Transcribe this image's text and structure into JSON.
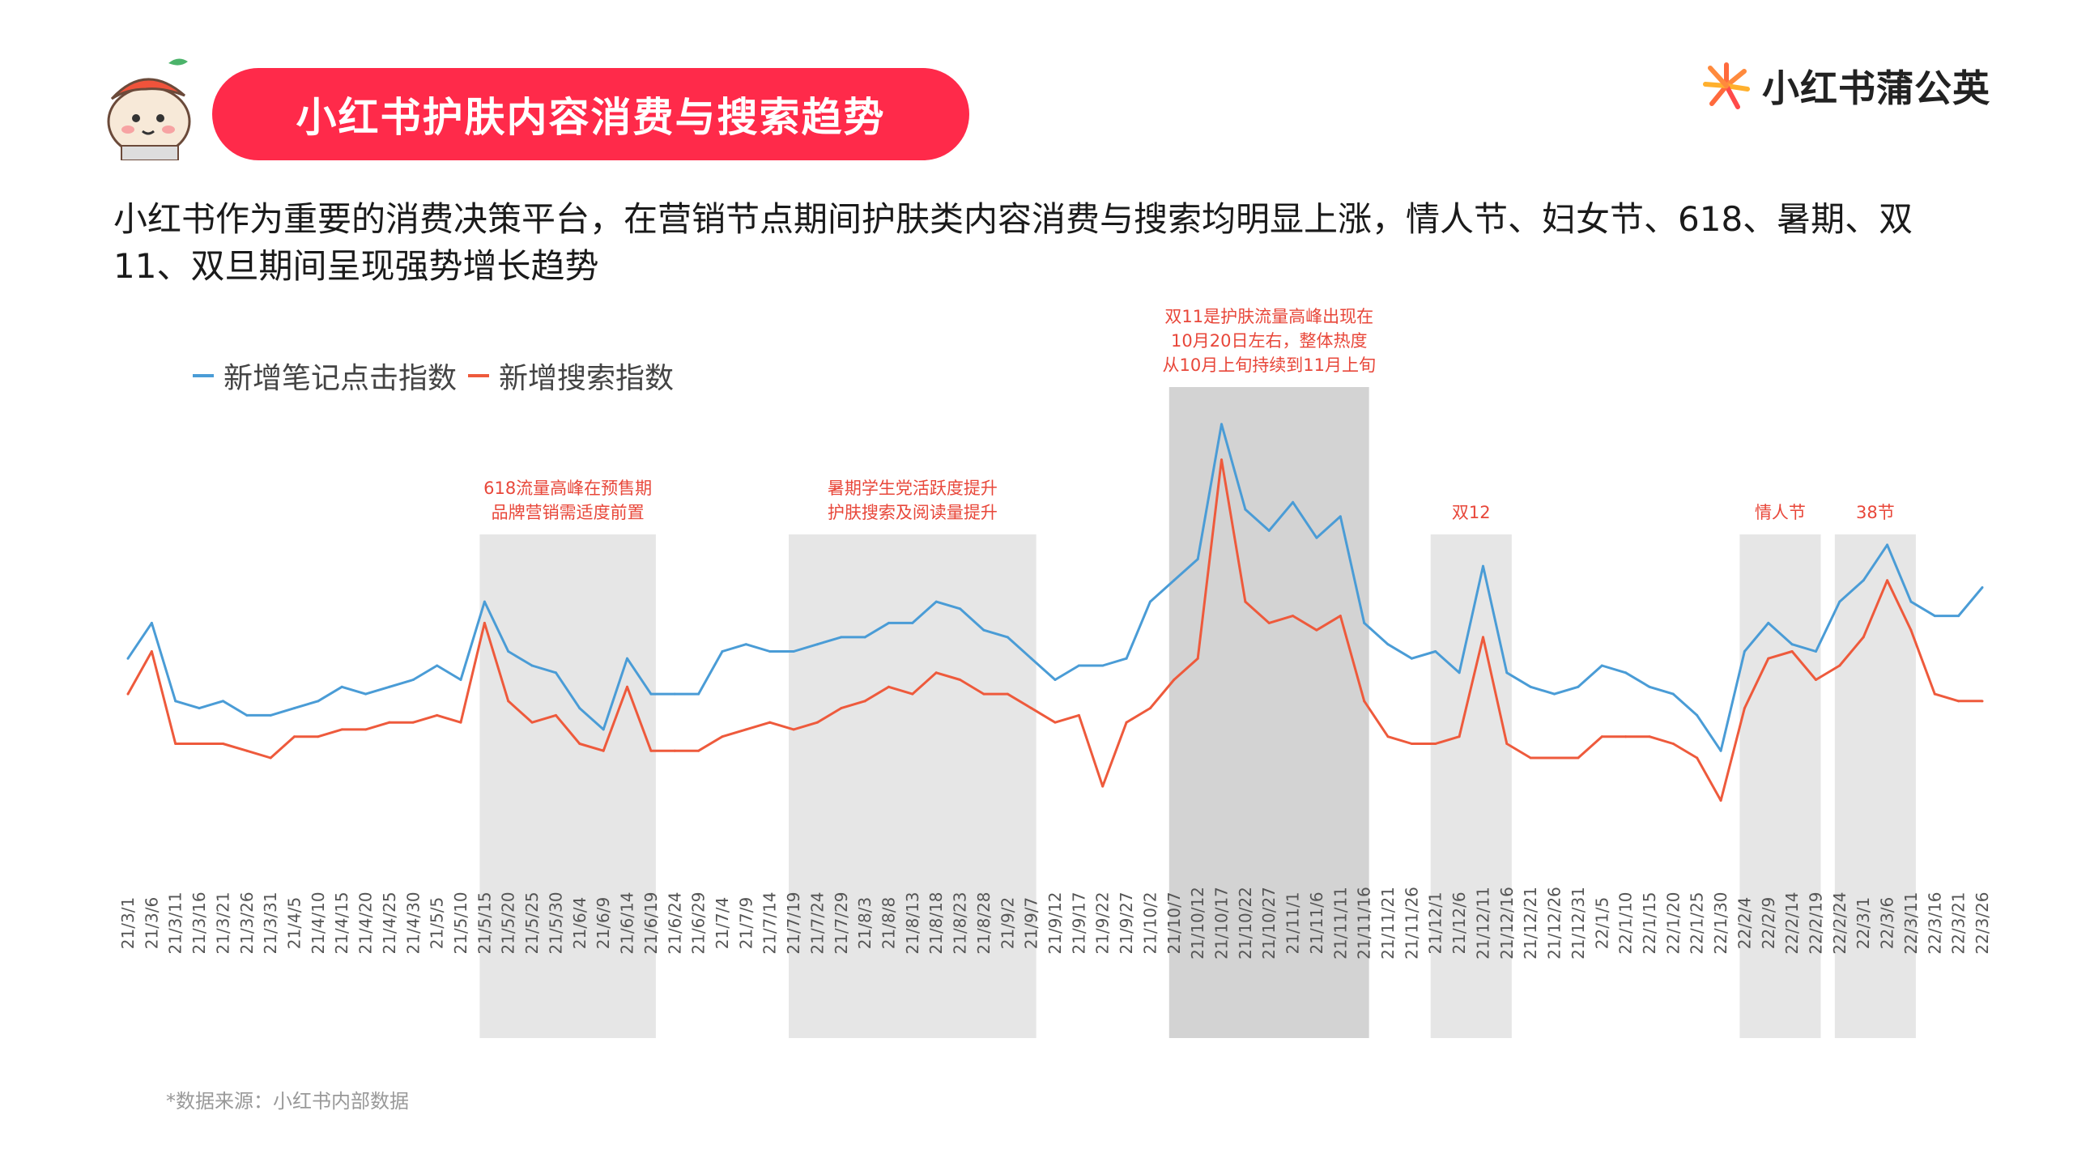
{
  "header": {
    "title": "小红书护肤内容消费与搜索趋势",
    "brand": "小红书蒲公英"
  },
  "subtitle": "小红书作为重要的消费决策平台，在营销节点期间护肤类内容消费与搜索均明显上涨，情人节、妇女节、618、暑期、双11、双旦期间呈现强势增长趋势",
  "legend": {
    "sep": "一",
    "series1_label": "新增笔记点击指数",
    "series2_label": "新增搜索指数"
  },
  "source": "*数据来源：小红书内部数据",
  "colors": {
    "accent": "#ff2a4a",
    "series1": "#4a9cd6",
    "series2": "#ee5a3c",
    "band_light": "#e6e6e6",
    "band_dark": "#d3d3d3",
    "annotation": "#e8473a"
  },
  "chart_data": {
    "type": "line",
    "x": [
      "21/3/1",
      "21/3/6",
      "21/3/11",
      "21/3/16",
      "21/3/21",
      "21/3/26",
      "21/3/31",
      "21/4/5",
      "21/4/10",
      "21/4/15",
      "21/4/20",
      "21/4/25",
      "21/4/30",
      "21/5/5",
      "21/5/10",
      "21/5/15",
      "21/5/20",
      "21/5/25",
      "21/5/30",
      "21/6/4",
      "21/6/9",
      "21/6/14",
      "21/6/19",
      "21/6/24",
      "21/6/29",
      "21/7/4",
      "21/7/9",
      "21/7/14",
      "21/7/19",
      "21/7/24",
      "21/7/29",
      "21/8/3",
      "21/8/8",
      "21/8/13",
      "21/8/18",
      "21/8/23",
      "21/8/28",
      "21/9/2",
      "21/9/7",
      "21/9/12",
      "21/9/17",
      "21/9/22",
      "21/9/27",
      "21/10/2",
      "21/10/7",
      "21/10/12",
      "21/10/17",
      "21/10/22",
      "21/10/27",
      "21/11/1",
      "21/11/6",
      "21/11/11",
      "21/11/16",
      "21/11/21",
      "21/11/26",
      "21/12/1",
      "21/12/6",
      "21/12/11",
      "21/12/16",
      "21/12/21",
      "21/12/26",
      "21/12/31",
      "22/1/5",
      "22/1/10",
      "22/1/15",
      "22/1/20",
      "22/1/25",
      "22/1/30",
      "22/2/4",
      "22/2/9",
      "22/2/14",
      "22/2/19",
      "22/2/24",
      "22/3/1",
      "22/3/6",
      "22/3/11",
      "22/3/16",
      "22/3/21",
      "22/3/26"
    ],
    "series": [
      {
        "name": "新增笔记点击指数",
        "values": [
          52,
          57,
          46,
          45,
          46,
          44,
          44,
          45,
          46,
          48,
          47,
          48,
          49,
          51,
          49,
          60,
          53,
          51,
          50,
          45,
          42,
          52,
          47,
          47,
          47,
          53,
          54,
          53,
          53,
          54,
          55,
          55,
          57,
          57,
          60,
          59,
          56,
          55,
          52,
          49,
          51,
          51,
          52,
          60,
          63,
          66,
          85,
          73,
          70,
          74,
          69,
          72,
          57,
          54,
          52,
          53,
          50,
          65,
          50,
          48,
          47,
          48,
          51,
          50,
          48,
          47,
          44,
          39,
          53,
          57,
          54,
          53,
          60,
          63,
          68,
          60,
          58,
          58,
          62
        ]
      },
      {
        "name": "新增搜索指数",
        "values": [
          47,
          53,
          40,
          40,
          40,
          39,
          38,
          41,
          41,
          42,
          42,
          43,
          43,
          44,
          43,
          57,
          46,
          43,
          44,
          40,
          39,
          48,
          39,
          39,
          39,
          41,
          42,
          43,
          42,
          43,
          45,
          46,
          48,
          47,
          50,
          49,
          47,
          47,
          45,
          43,
          44,
          34,
          43,
          45,
          49,
          52,
          80,
          60,
          57,
          58,
          56,
          58,
          46,
          41,
          40,
          40,
          41,
          55,
          40,
          38,
          38,
          38,
          41,
          41,
          41,
          40,
          38,
          32,
          45,
          52,
          53,
          49,
          51,
          55,
          63,
          56,
          47,
          46,
          46
        ]
      }
    ],
    "shaded_periods": [
      {
        "from": "21/5/15",
        "to": "21/6/19",
        "label": "618流量高峰在预售期\n品牌营销需适度前置"
      },
      {
        "from": "21/7/19",
        "to": "21/9/7",
        "label": "暑期学生党活跃度提升\n护肤搜索及阅读量提升"
      },
      {
        "from": "21/10/7",
        "to": "21/11/16",
        "label": "双11是护肤流量高峰出现在\n10月20日左右，整体热度\n从10月上旬持续到11月上旬"
      },
      {
        "from": "21/12/1",
        "to": "21/12/16",
        "label": "双12"
      },
      {
        "from": "22/2/4",
        "to": "22/2/19",
        "label": "情人节"
      },
      {
        "from": "22/2/24",
        "to": "22/3/11",
        "label": "38节"
      }
    ],
    "grid": false
  }
}
